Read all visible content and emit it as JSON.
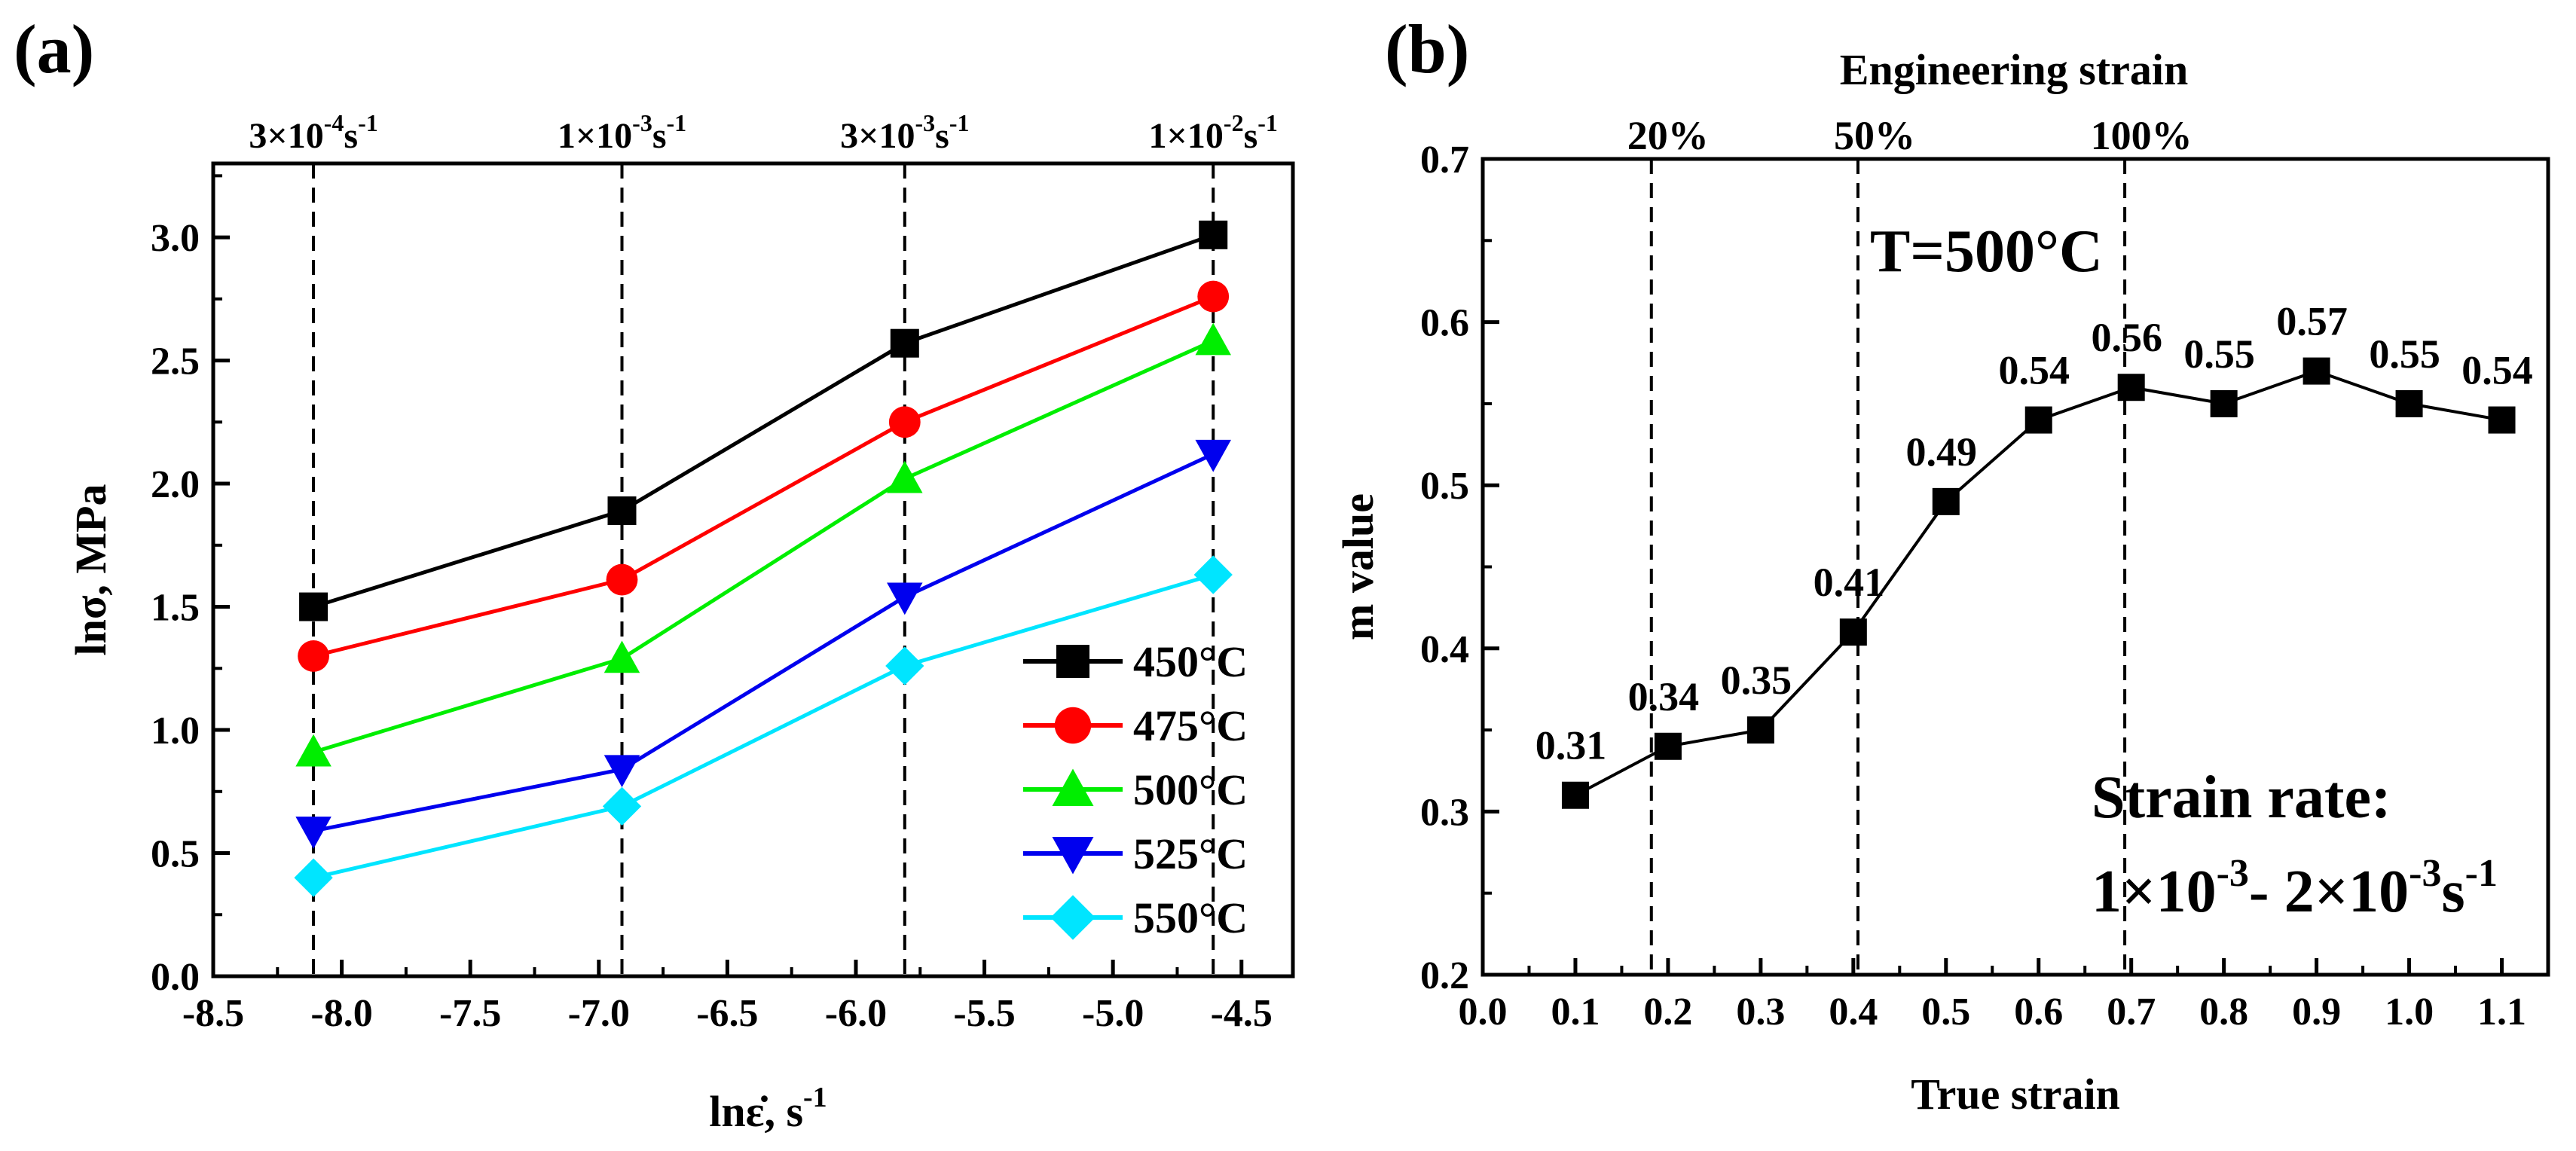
{
  "chart_data": [
    {
      "panel": "(a)",
      "type": "line",
      "xlabel": "lnε̇, s",
      "xlabel_sup": "-1",
      "ylabel": "lnσ, MPa",
      "xlim": [
        -8.5,
        -4.3
      ],
      "ylim": [
        0.0,
        3.3
      ],
      "xticks": [
        "-8.5",
        "-8.0",
        "-7.5",
        "-7.0",
        "-6.5",
        "-6.0",
        "-5.5",
        "-5.0",
        "-4.5"
      ],
      "xtick_values": [
        -8.5,
        -8.0,
        -7.5,
        -7.0,
        -6.5,
        -6.0,
        -5.5,
        -5.0,
        -4.5
      ],
      "yticks": [
        "0.0",
        "0.5",
        "1.0",
        "1.5",
        "2.0",
        "2.5",
        "3.0"
      ],
      "ytick_values": [
        0.0,
        0.5,
        1.0,
        1.5,
        2.0,
        2.5,
        3.0
      ],
      "top_labels": [
        {
          "x": -8.11,
          "mant": "3×10",
          "exp": "-4",
          "unit": "s",
          "unit_exp": "-1"
        },
        {
          "x": -6.91,
          "mant": "1×10",
          "exp": "-3",
          "unit": "s",
          "unit_exp": "-1"
        },
        {
          "x": -5.81,
          "mant": "3×10",
          "exp": "-3",
          "unit": "s",
          "unit_exp": "-1"
        },
        {
          "x": -4.61,
          "mant": "1×10",
          "exp": "-2",
          "unit": "s",
          "unit_exp": "-1"
        }
      ],
      "x": [
        -8.11,
        -6.91,
        -5.81,
        -4.61
      ],
      "series": [
        {
          "name": "450°C",
          "color": "#000000",
          "marker": "square",
          "values": [
            1.5,
            1.89,
            2.57,
            3.01
          ]
        },
        {
          "name": "475°C",
          "color": "#ff0000",
          "marker": "circle",
          "values": [
            1.3,
            1.61,
            2.25,
            2.76
          ]
        },
        {
          "name": "500°C",
          "color": "#00ee00",
          "marker": "triangle-up",
          "values": [
            0.91,
            1.29,
            2.02,
            2.58
          ]
        },
        {
          "name": "525°C",
          "color": "#0000ee",
          "marker": "triangle-down",
          "values": [
            0.59,
            0.84,
            1.54,
            2.12
          ]
        },
        {
          "name": "550°C",
          "color": "#00e5ff",
          "marker": "diamond",
          "values": [
            0.4,
            0.69,
            1.26,
            1.63
          ]
        }
      ],
      "legend_position": "bottom-right",
      "grid": false
    },
    {
      "panel": "(b)",
      "type": "line",
      "xlabel": "True strain",
      "ylabel": "m value",
      "top_axis_title": "Engineering strain",
      "xlim": [
        0.0,
        1.15
      ],
      "ylim": [
        0.2,
        0.7
      ],
      "xticks": [
        "0.0",
        "0.1",
        "0.2",
        "0.3",
        "0.4",
        "0.5",
        "0.6",
        "0.7",
        "0.8",
        "0.9",
        "1.0",
        "1.1"
      ],
      "xtick_values": [
        0.0,
        0.1,
        0.2,
        0.3,
        0.4,
        0.5,
        0.6,
        0.7,
        0.8,
        0.9,
        1.0,
        1.1
      ],
      "yticks": [
        "0.2",
        "0.3",
        "0.4",
        "0.5",
        "0.6",
        "0.7"
      ],
      "ytick_values": [
        0.2,
        0.3,
        0.4,
        0.5,
        0.6,
        0.7
      ],
      "top_labels": [
        {
          "x": 0.182,
          "label": "20%"
        },
        {
          "x": 0.405,
          "label": "50%"
        },
        {
          "x": 0.693,
          "label": "100%"
        }
      ],
      "series": [
        {
          "color": "#000000",
          "marker": "square",
          "x": [
            0.1,
            0.2,
            0.3,
            0.4,
            0.5,
            0.6,
            0.7,
            0.8,
            0.9,
            1.0,
            1.1
          ],
          "values": [
            0.31,
            0.34,
            0.35,
            0.41,
            0.49,
            0.54,
            0.56,
            0.55,
            0.57,
            0.55,
            0.54
          ],
          "data_labels": [
            "0.31",
            "0.34",
            "0.35",
            "0.41",
            "0.49",
            "0.54",
            "0.56",
            "0.55",
            "0.57",
            "0.55",
            "0.54"
          ]
        }
      ],
      "annotations": {
        "temperature": "T=500°C",
        "strain_rate_title": "Strain rate:",
        "strain_rate_a": "1×10",
        "strain_rate_a_exp": "-3",
        "strain_rate_sep": "- 2×10",
        "strain_rate_b_exp": "-3",
        "strain_rate_unit": "s",
        "strain_rate_unit_exp": "-1"
      },
      "grid": false
    }
  ]
}
